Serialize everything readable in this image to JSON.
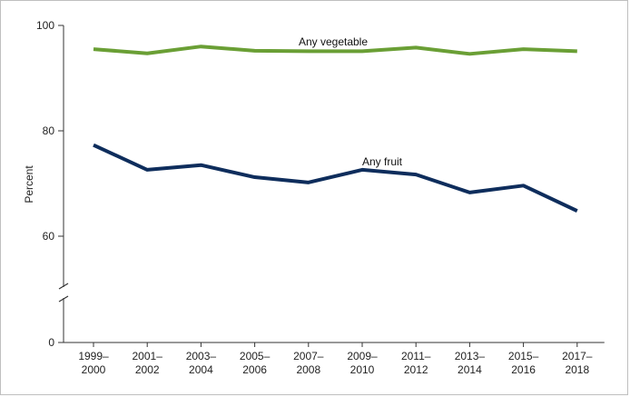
{
  "chart_data": {
    "type": "line",
    "title": "",
    "xlabel": "",
    "ylabel": "Percent",
    "ylim": [
      0,
      100
    ],
    "axis_break": [
      0,
      50
    ],
    "y_ticks": [
      "0",
      "60",
      "80",
      "100"
    ],
    "grid": false,
    "categories": [
      [
        "1999–",
        "2000"
      ],
      [
        "2001–",
        "2002"
      ],
      [
        "2003–",
        "2004"
      ],
      [
        "2005–",
        "2006"
      ],
      [
        "2007–",
        "2008"
      ],
      [
        "2009–",
        "2010"
      ],
      [
        "2011–",
        "2012"
      ],
      [
        "2013–",
        "2014"
      ],
      [
        "2015–",
        "2016"
      ],
      [
        "2017–",
        "2018"
      ]
    ],
    "series": [
      {
        "name": "Any vegetable",
        "color": "#6a9f35",
        "values": [
          95.5,
          94.7,
          96.0,
          95.2,
          95.1,
          95.1,
          95.8,
          94.6,
          95.5,
          95.1
        ]
      },
      {
        "name": "Any fruit",
        "color": "#0e2d5c",
        "values": [
          77.3,
          72.6,
          73.5,
          71.2,
          70.2,
          72.6,
          71.7,
          68.3,
          69.6,
          64.8
        ]
      }
    ]
  }
}
